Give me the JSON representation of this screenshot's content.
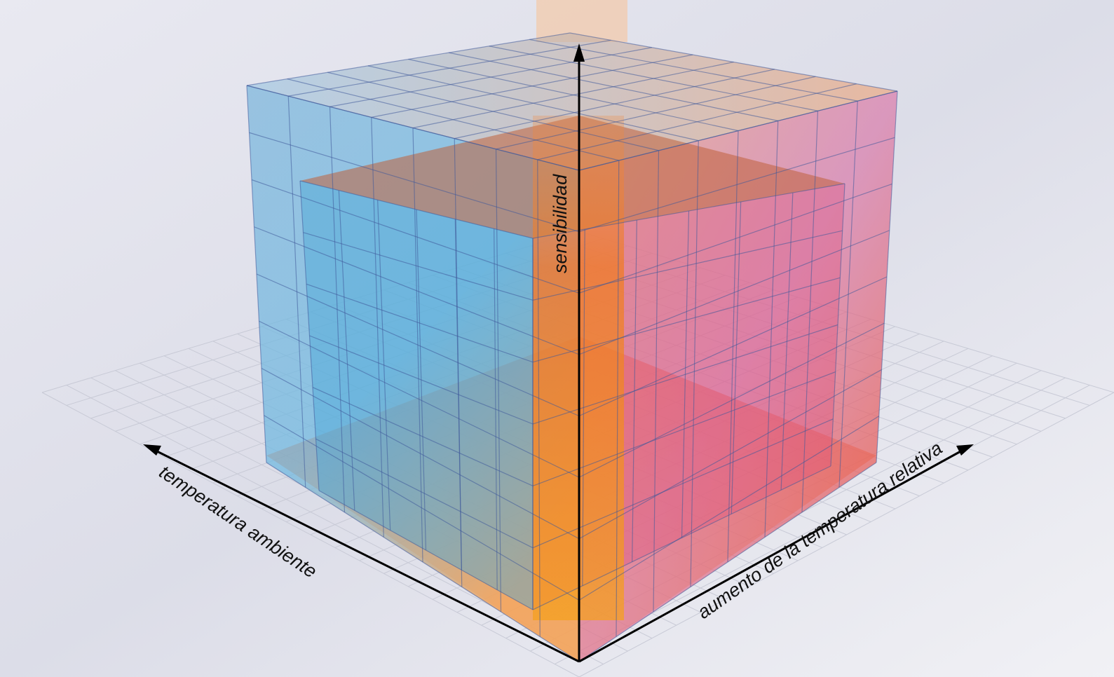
{
  "axes": {
    "vertical": "sensibilidad",
    "left": "temperatura ambiente",
    "right": "aumento de la temperatura relativa"
  }
}
